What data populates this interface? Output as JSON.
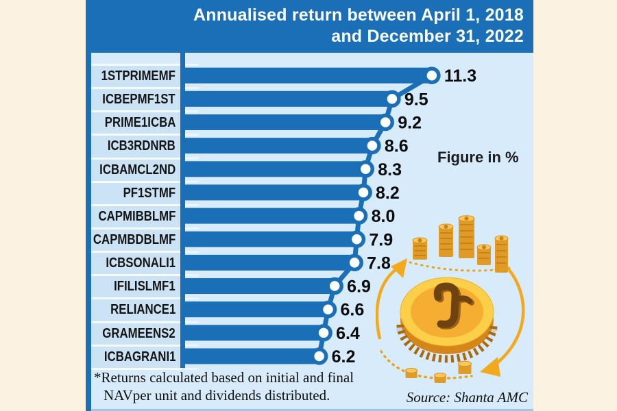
{
  "header": {
    "title_line1": "Annualised return between April 1, 2018",
    "title_line2": "and December 31, 2022"
  },
  "chart_data": {
    "type": "bar",
    "orientation": "horizontal",
    "title": "Annualised return between April 1, 2018 and December 31, 2022",
    "unit_note": "Figure in %",
    "categories": [
      "1STPRIMEMF",
      "ICBEPMF1ST",
      "PRIME1ICBA",
      "ICB3RDNRB",
      "ICBAMCL2ND",
      "PF1STMF",
      "CAPMIBBLMF",
      "CAPMBDBLMF",
      "ICBSONALI1",
      "IFILISLMF1",
      "RELIANCE1",
      "GRAMEENS2",
      "ICBAGRANI1"
    ],
    "values": [
      11.3,
      9.5,
      9.2,
      8.6,
      8.3,
      8.2,
      8.0,
      7.9,
      7.8,
      6.9,
      6.6,
      6.4,
      6.2
    ],
    "xlim": [
      0,
      12
    ],
    "grid": "off",
    "legend": "none",
    "marker": "circle-at-bar-end-connected-by-line",
    "bar_color": "#1a6fb7",
    "marker_fill": "#ffffff"
  },
  "annotations": {
    "figure_note": "Figure in %",
    "footnote_line1": "*Returns calculated based on initial and final",
    "footnote_line2": "NAVper unit and dividends distributed.",
    "source": "Source: Shanta AMC"
  },
  "colors": {
    "dark_blue": "#1a6fb7",
    "panel_blue": "#d7ebfa",
    "label_cell_blue": "#cbe3f5",
    "cream_background": "#fcf2e1",
    "value_text": "#0b0b0b",
    "gold_arrow": "#f3a91c",
    "coin_face_gold": "#fccf49",
    "coin_inner_gold": "#f5ae31"
  },
  "illustration": {
    "icons": [
      "coin-stack-icon",
      "taka-coin-icon",
      "cycle-arrows-icon",
      "small-coins-icon"
    ]
  }
}
